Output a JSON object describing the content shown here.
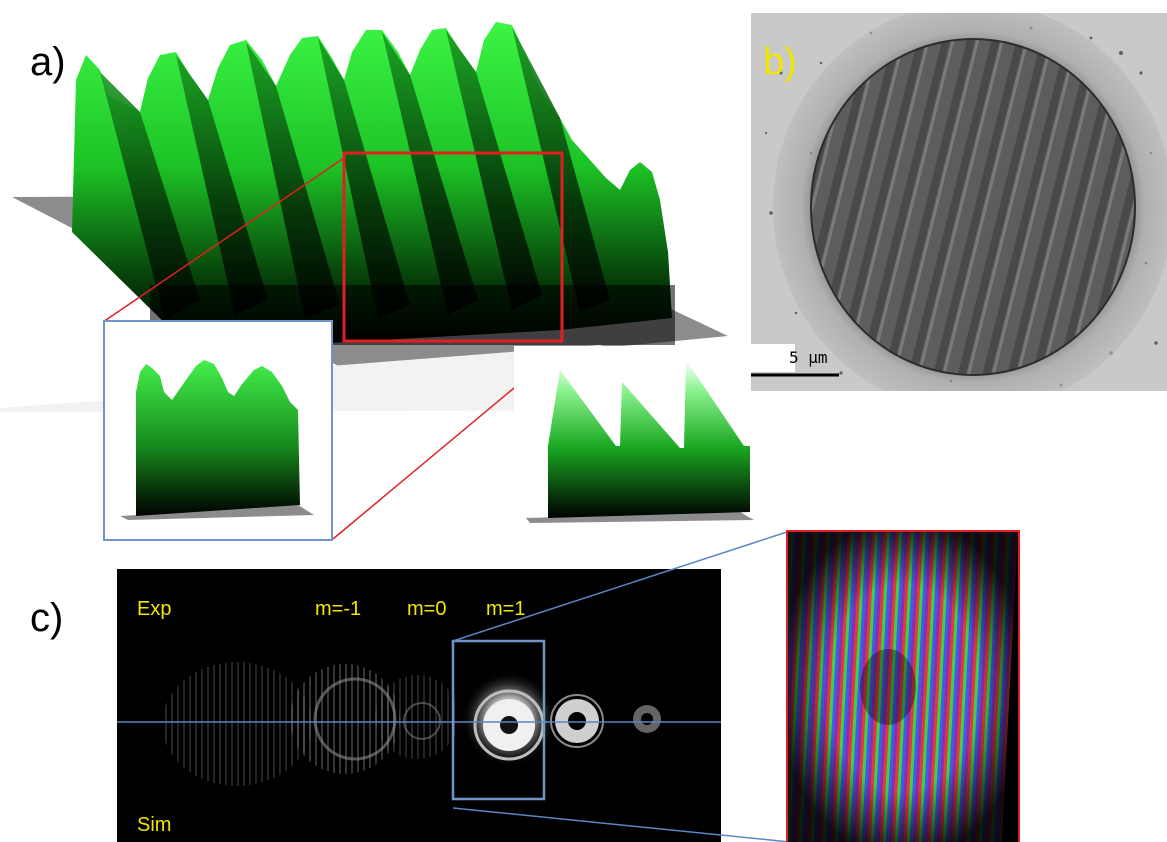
{
  "panel_a": {
    "label": "a)"
  },
  "panel_b": {
    "label": "b)",
    "scale_bar_text": "5  µm",
    "label_color": "#f2e600"
  },
  "panel_c": {
    "label": "c)",
    "exp_label": "Exp",
    "sim_label": "Sim",
    "orders": [
      "m=-1",
      "m=0",
      "m=1"
    ],
    "text_color": "#f2e600"
  },
  "colors": {
    "profile_green": "#2ff03a",
    "zoom_box_red": "#e02020",
    "inset_box_blue": "#6f95c9",
    "connector_blue": "#5a86c5"
  }
}
